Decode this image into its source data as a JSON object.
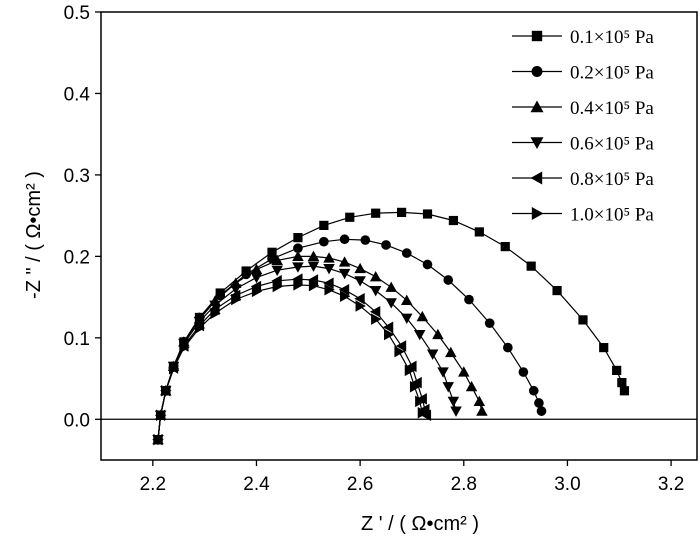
{
  "chart_data": {
    "type": "scatter",
    "xlabel": "Z ' / ( Ω•cm² )",
    "ylabel": "-Z \" / ( Ω•cm² )",
    "xlim": [
      2.1,
      3.25
    ],
    "ylim": [
      -0.05,
      0.5
    ],
    "xticks": [
      2.2,
      2.4,
      2.6,
      2.8,
      3.0,
      3.2
    ],
    "xtick_labels": [
      "2.2",
      "2.4",
      "2.6",
      "2.8",
      "3.0",
      "3.2"
    ],
    "yticks": [
      0.0,
      0.1,
      0.2,
      0.3,
      0.4,
      0.5
    ],
    "ytick_labels": [
      "0.0",
      "0.1",
      "0.2",
      "0.3",
      "0.4",
      "0.5"
    ],
    "legend_position": "top-right",
    "zero_line": true,
    "series": [
      {
        "name": "0.1×10⁵ Pa",
        "marker": "square",
        "x": [
          2.21,
          2.215,
          2.225,
          2.24,
          2.26,
          2.29,
          2.33,
          2.38,
          2.43,
          2.48,
          2.53,
          2.58,
          2.63,
          2.68,
          2.73,
          2.78,
          2.83,
          2.88,
          2.93,
          2.98,
          3.03,
          3.07,
          3.095,
          3.105,
          3.11
        ],
        "y": [
          -0.025,
          0.005,
          0.035,
          0.065,
          0.095,
          0.125,
          0.155,
          0.182,
          0.205,
          0.223,
          0.238,
          0.248,
          0.253,
          0.254,
          0.252,
          0.244,
          0.23,
          0.212,
          0.188,
          0.158,
          0.122,
          0.088,
          0.06,
          0.045,
          0.035
        ]
      },
      {
        "name": "0.2×10⁵ Pa",
        "marker": "circle",
        "x": [
          2.21,
          2.215,
          2.225,
          2.24,
          2.26,
          2.29,
          2.33,
          2.38,
          2.43,
          2.48,
          2.53,
          2.57,
          2.61,
          2.65,
          2.69,
          2.73,
          2.77,
          2.81,
          2.85,
          2.885,
          2.915,
          2.935,
          2.945,
          2.95
        ],
        "y": [
          -0.025,
          0.005,
          0.035,
          0.065,
          0.095,
          0.125,
          0.152,
          0.178,
          0.197,
          0.21,
          0.218,
          0.221,
          0.22,
          0.214,
          0.204,
          0.19,
          0.171,
          0.147,
          0.118,
          0.088,
          0.058,
          0.035,
          0.02,
          0.01
        ]
      },
      {
        "name": "0.4×10⁵ Pa",
        "marker": "triangle-up",
        "x": [
          2.21,
          2.215,
          2.225,
          2.24,
          2.26,
          2.29,
          2.32,
          2.36,
          2.4,
          2.44,
          2.48,
          2.51,
          2.54,
          2.57,
          2.6,
          2.63,
          2.66,
          2.69,
          2.72,
          2.75,
          2.775,
          2.8,
          2.815,
          2.83,
          2.835
        ],
        "y": [
          -0.025,
          0.005,
          0.035,
          0.065,
          0.095,
          0.123,
          0.145,
          0.167,
          0.184,
          0.195,
          0.2,
          0.2,
          0.198,
          0.193,
          0.185,
          0.175,
          0.162,
          0.146,
          0.126,
          0.104,
          0.082,
          0.058,
          0.04,
          0.022,
          0.01
        ]
      },
      {
        "name": "0.6×10⁵ Pa",
        "marker": "triangle-down",
        "x": [
          2.21,
          2.215,
          2.225,
          2.24,
          2.26,
          2.29,
          2.32,
          2.36,
          2.4,
          2.44,
          2.48,
          2.51,
          2.54,
          2.57,
          2.6,
          2.63,
          2.66,
          2.69,
          2.715,
          2.74,
          2.76,
          2.77,
          2.78,
          2.785
        ],
        "y": [
          -0.025,
          0.005,
          0.035,
          0.065,
          0.093,
          0.12,
          0.14,
          0.16,
          0.174,
          0.183,
          0.187,
          0.188,
          0.185,
          0.179,
          0.17,
          0.158,
          0.143,
          0.124,
          0.104,
          0.08,
          0.058,
          0.04,
          0.022,
          0.01
        ]
      },
      {
        "name": "0.8×10⁵ Pa",
        "marker": "triangle-left",
        "x": [
          2.21,
          2.215,
          2.225,
          2.24,
          2.26,
          2.29,
          2.32,
          2.36,
          2.4,
          2.44,
          2.48,
          2.51,
          2.54,
          2.57,
          2.6,
          2.63,
          2.655,
          2.68,
          2.7,
          2.71,
          2.72,
          2.725,
          2.728
        ],
        "y": [
          -0.025,
          0.005,
          0.035,
          0.063,
          0.09,
          0.115,
          0.135,
          0.152,
          0.163,
          0.17,
          0.172,
          0.171,
          0.167,
          0.159,
          0.148,
          0.132,
          0.113,
          0.09,
          0.065,
          0.045,
          0.025,
          0.012,
          0.005
        ]
      },
      {
        "name": "1.0×10⁵ Pa",
        "marker": "triangle-right",
        "x": [
          2.21,
          2.215,
          2.225,
          2.24,
          2.26,
          2.29,
          2.32,
          2.36,
          2.4,
          2.44,
          2.48,
          2.51,
          2.54,
          2.57,
          2.6,
          2.63,
          2.655,
          2.675,
          2.695,
          2.705,
          2.715,
          2.72
        ],
        "y": [
          -0.025,
          0.005,
          0.035,
          0.062,
          0.088,
          0.112,
          0.13,
          0.147,
          0.157,
          0.163,
          0.165,
          0.164,
          0.159,
          0.151,
          0.139,
          0.123,
          0.104,
          0.083,
          0.06,
          0.04,
          0.022,
          0.008
        ]
      }
    ]
  }
}
